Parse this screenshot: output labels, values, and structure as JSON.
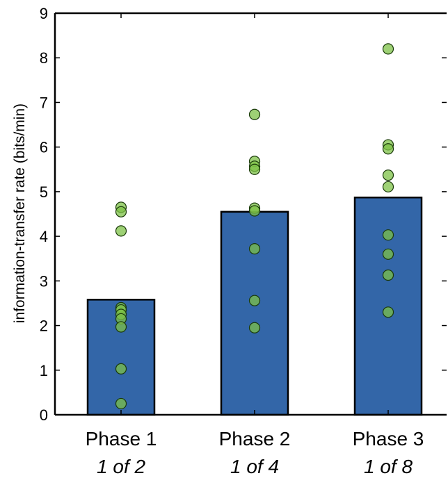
{
  "chart_data": {
    "type": "bar",
    "title": "",
    "xlabel": "",
    "ylabel": "information-transfer rate (bits/min)",
    "ylim": [
      0,
      9
    ],
    "yticks": [
      "0",
      "1",
      "2",
      "3",
      "4",
      "5",
      "6",
      "7",
      "8",
      "9"
    ],
    "grid": false,
    "categories": [
      "Phase 1",
      "Phase 2",
      "Phase 3"
    ],
    "category_sublabels": [
      "1 of 2",
      "1 of 4",
      "1 of 8"
    ],
    "values": [
      2.58,
      4.55,
      4.87
    ],
    "points": [
      [
        4.65,
        4.55,
        4.12,
        2.4,
        2.35,
        2.25,
        2.15,
        1.97,
        1.03,
        0.25
      ],
      [
        6.73,
        5.68,
        5.57,
        5.5,
        4.63,
        4.57,
        3.72,
        2.56,
        1.95
      ],
      [
        8.2,
        6.05,
        5.96,
        5.37,
        5.11,
        4.03,
        3.6,
        3.13,
        2.3
      ]
    ],
    "bar_color": "#3366a8",
    "point_color": "#7dc147"
  }
}
